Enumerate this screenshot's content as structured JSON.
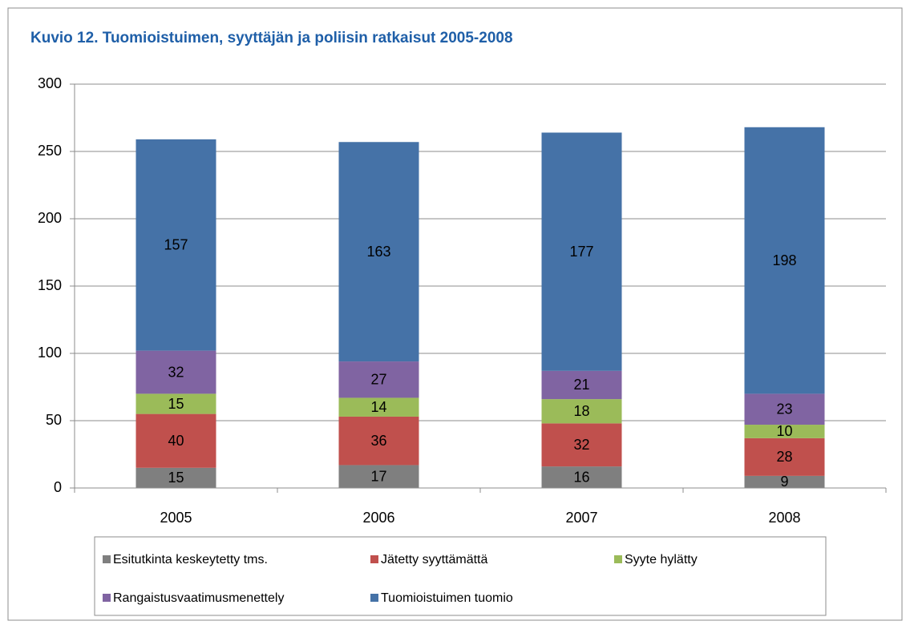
{
  "chart_data": {
    "type": "stacked_bar",
    "title": "Kuvio 12. Tuomioistuimen, syyttäjän ja poliisin ratkaisut 2005-2008",
    "categories": [
      "2005",
      "2006",
      "2007",
      "2008"
    ],
    "series": [
      {
        "name": "Esitutkinta keskeytetty tms.",
        "color": "#7f7f7f",
        "values": [
          15,
          17,
          16,
          9
        ]
      },
      {
        "name": "Jätetty syyttämättä",
        "color": "#c0504d",
        "values": [
          40,
          36,
          32,
          28
        ]
      },
      {
        "name": "Syyte hylätty",
        "color": "#9bbb59",
        "values": [
          15,
          14,
          18,
          10
        ]
      },
      {
        "name": "Rangaistusvaatimusmenettely",
        "color": "#8064a2",
        "values": [
          32,
          27,
          21,
          23
        ]
      },
      {
        "name": "Tuomioistuimen tuomio",
        "color": "#4572a7",
        "values": [
          157,
          163,
          177,
          198
        ]
      }
    ],
    "ylim": [
      0,
      300
    ],
    "yticks": [
      0,
      50,
      100,
      150,
      200,
      250,
      300
    ],
    "grid": true,
    "legend": "bottom"
  }
}
